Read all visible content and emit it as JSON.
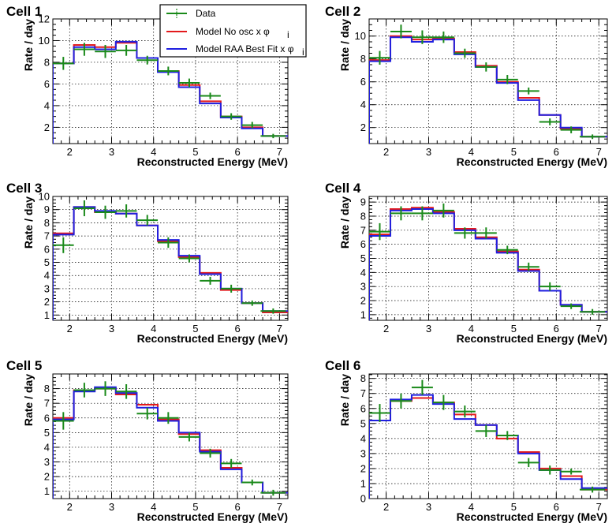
{
  "legend": {
    "data": "Data",
    "no_osc": "Model No osc x φ",
    "no_osc_sub": "i",
    "raa": "Model RAA Best Fit x φ",
    "raa_sub": "i"
  },
  "colors": {
    "data": "#1a8a1a",
    "no_osc": "#e31a1c",
    "raa": "#1f1fe0"
  },
  "chart_data": [
    {
      "type": "line",
      "title": "Cell 1",
      "xlabel": "Reconstructed Energy (MeV)",
      "ylabel": "Rate / day",
      "xlim": [
        1.6,
        7.2
      ],
      "ylim": [
        0.5,
        12
      ],
      "xticks": [
        2,
        3,
        4,
        5,
        6,
        7
      ],
      "yticks": [
        2,
        4,
        6,
        8,
        10,
        12
      ],
      "grid": true,
      "bin_edges": [
        1.6,
        2.1,
        2.6,
        3.1,
        3.6,
        4.1,
        4.6,
        5.1,
        5.6,
        6.1,
        6.6,
        7.2
      ],
      "series": [
        {
          "name": "Data",
          "x": [
            1.85,
            2.35,
            2.85,
            3.35,
            3.85,
            4.35,
            4.85,
            5.35,
            5.85,
            6.35,
            6.85
          ],
          "values": [
            7.9,
            9.2,
            9.0,
            9.1,
            8.2,
            7.2,
            6.1,
            4.9,
            3.0,
            2.2,
            1.2
          ],
          "errors": [
            0.6,
            0.6,
            0.6,
            0.5,
            0.4,
            0.4,
            0.4,
            0.3,
            0.3,
            0.3,
            0.2
          ]
        },
        {
          "name": "Model No osc x φi",
          "values": [
            7.9,
            9.6,
            9.4,
            9.8,
            8.4,
            7.2,
            5.9,
            4.4,
            3.0,
            2.0,
            1.2
          ]
        },
        {
          "name": "Model RAA Best Fit x φi",
          "values": [
            7.9,
            9.4,
            9.2,
            9.9,
            8.4,
            7.1,
            5.7,
            4.2,
            2.9,
            1.9,
            1.2
          ]
        }
      ]
    },
    {
      "type": "line",
      "title": "Cell 2",
      "xlabel": "Reconstructed Energy (MeV)",
      "ylabel": "Rate / day",
      "xlim": [
        1.6,
        7.2
      ],
      "ylim": [
        0.6,
        11.5
      ],
      "xticks": [
        2,
        3,
        4,
        5,
        6,
        7
      ],
      "yticks": [
        2,
        4,
        6,
        8,
        10
      ],
      "grid": true,
      "bin_edges": [
        1.6,
        2.1,
        2.6,
        3.1,
        3.6,
        4.1,
        4.6,
        5.1,
        5.6,
        6.1,
        6.6,
        7.2
      ],
      "series": [
        {
          "name": "Data",
          "x": [
            1.85,
            2.35,
            2.85,
            3.35,
            3.85,
            4.35,
            4.85,
            5.35,
            5.85,
            6.35,
            6.85
          ],
          "values": [
            8.1,
            10.4,
            9.9,
            9.9,
            8.5,
            7.3,
            6.2,
            5.2,
            2.5,
            1.8,
            1.2
          ],
          "errors": [
            0.6,
            0.6,
            0.6,
            0.5,
            0.4,
            0.4,
            0.4,
            0.3,
            0.3,
            0.3,
            0.2
          ]
        },
        {
          "name": "Model No osc x φi",
          "values": [
            7.9,
            10.0,
            9.7,
            9.8,
            8.6,
            7.4,
            6.0,
            4.6,
            3.1,
            1.9,
            1.2
          ]
        },
        {
          "name": "Model RAA Best Fit x φi",
          "values": [
            7.8,
            9.9,
            9.5,
            9.7,
            8.4,
            7.3,
            5.9,
            4.4,
            3.1,
            2.0,
            1.2
          ]
        }
      ]
    },
    {
      "type": "line",
      "title": "Cell 3",
      "xlabel": "Reconstructed Energy (MeV)",
      "ylabel": "Rate / day",
      "xlim": [
        1.6,
        7.2
      ],
      "ylim": [
        0.6,
        10
      ],
      "xticks": [
        2,
        3,
        4,
        5,
        6,
        7
      ],
      "yticks": [
        1,
        2,
        3,
        4,
        5,
        6,
        7,
        8,
        9,
        10
      ],
      "grid": true,
      "bin_edges": [
        1.6,
        2.1,
        2.6,
        3.1,
        3.6,
        4.1,
        4.6,
        5.1,
        5.6,
        6.1,
        6.6,
        7.2
      ],
      "series": [
        {
          "name": "Data",
          "x": [
            1.85,
            2.35,
            2.85,
            3.35,
            3.85,
            4.35,
            4.85,
            5.35,
            5.85,
            6.35,
            6.85
          ],
          "values": [
            6.3,
            9.1,
            8.8,
            8.9,
            8.2,
            6.5,
            5.3,
            3.6,
            3.0,
            1.9,
            1.3
          ],
          "errors": [
            0.6,
            0.6,
            0.5,
            0.5,
            0.4,
            0.4,
            0.3,
            0.3,
            0.3,
            0.2,
            0.2
          ]
        },
        {
          "name": "Model No osc x φi",
          "values": [
            7.2,
            9.2,
            8.8,
            8.7,
            7.8,
            6.6,
            5.4,
            4.2,
            2.9,
            1.9,
            1.2
          ]
        },
        {
          "name": "Model RAA Best Fit x φi",
          "values": [
            7.1,
            9.2,
            8.9,
            8.7,
            7.8,
            6.7,
            5.5,
            4.1,
            3.0,
            1.9,
            1.3
          ]
        }
      ]
    },
    {
      "type": "line",
      "title": "Cell 4",
      "xlabel": "Reconstructed Energy (MeV)",
      "ylabel": "Rate / day",
      "xlim": [
        1.6,
        7.2
      ],
      "ylim": [
        0.6,
        9.4
      ],
      "xticks": [
        2,
        3,
        4,
        5,
        6,
        7
      ],
      "yticks": [
        1,
        2,
        3,
        4,
        5,
        6,
        7,
        8,
        9
      ],
      "grid": true,
      "bin_edges": [
        1.6,
        2.1,
        2.6,
        3.1,
        3.6,
        4.1,
        4.6,
        5.1,
        5.6,
        6.1,
        6.6,
        7.2
      ],
      "series": [
        {
          "name": "Data",
          "x": [
            1.85,
            2.35,
            2.85,
            3.35,
            3.85,
            4.35,
            4.85,
            5.35,
            5.85,
            6.35,
            6.85
          ],
          "values": [
            6.9,
            8.2,
            8.2,
            8.4,
            6.8,
            6.8,
            5.6,
            4.4,
            3.0,
            1.6,
            1.2
          ],
          "errors": [
            0.6,
            0.5,
            0.5,
            0.5,
            0.4,
            0.4,
            0.3,
            0.3,
            0.3,
            0.2,
            0.2
          ]
        },
        {
          "name": "Model No osc x φi",
          "values": [
            6.7,
            8.5,
            8.6,
            8.3,
            7.1,
            6.5,
            5.5,
            4.2,
            2.7,
            1.7,
            1.2
          ]
        },
        {
          "name": "Model RAA Best Fit x φi",
          "values": [
            6.6,
            8.4,
            8.5,
            8.2,
            7.0,
            6.4,
            5.4,
            4.1,
            2.7,
            1.7,
            1.2
          ]
        }
      ]
    },
    {
      "type": "line",
      "title": "Cell 5",
      "xlabel": "Reconstructed Energy (MeV)",
      "ylabel": "Rate / day",
      "xlim": [
        1.6,
        7.2
      ],
      "ylim": [
        0.5,
        9
      ],
      "xticks": [
        2,
        3,
        4,
        5,
        6,
        7
      ],
      "yticks": [
        1,
        2,
        3,
        4,
        5,
        6,
        7,
        8
      ],
      "grid": true,
      "bin_edges": [
        1.6,
        2.1,
        2.6,
        3.1,
        3.6,
        4.1,
        4.6,
        5.1,
        5.6,
        6.1,
        6.6,
        7.2
      ],
      "series": [
        {
          "name": "Data",
          "x": [
            1.85,
            2.35,
            2.85,
            3.35,
            3.85,
            4.35,
            4.85,
            5.35,
            5.85,
            6.35,
            6.85
          ],
          "values": [
            5.8,
            7.9,
            8.0,
            7.8,
            6.3,
            6.0,
            4.7,
            3.6,
            2.9,
            1.6,
            0.9
          ],
          "errors": [
            0.6,
            0.5,
            0.5,
            0.5,
            0.4,
            0.4,
            0.3,
            0.3,
            0.3,
            0.2,
            0.2
          ]
        },
        {
          "name": "Model No osc x φi",
          "values": [
            6.0,
            7.9,
            8.0,
            7.6,
            6.9,
            5.9,
            4.9,
            3.8,
            2.6,
            1.6,
            0.9
          ]
        },
        {
          "name": "Model RAA Best Fit x φi",
          "values": [
            5.9,
            7.8,
            8.1,
            7.7,
            6.7,
            5.8,
            5.0,
            3.7,
            2.5,
            1.6,
            0.9
          ]
        }
      ]
    },
    {
      "type": "line",
      "title": "Cell 6",
      "xlabel": "Reconstructed Energy (MeV)",
      "ylabel": "Rate / day",
      "xlim": [
        1.6,
        7.2
      ],
      "ylim": [
        0,
        8.3
      ],
      "xticks": [
        2,
        3,
        4,
        5,
        6,
        7
      ],
      "yticks": [
        0,
        1,
        2,
        3,
        4,
        5,
        6,
        7,
        8
      ],
      "grid": true,
      "bin_edges": [
        1.6,
        2.1,
        2.6,
        3.1,
        3.6,
        4.1,
        4.6,
        5.1,
        5.6,
        6.1,
        6.6,
        7.2
      ],
      "series": [
        {
          "name": "Data",
          "x": [
            1.85,
            2.35,
            2.85,
            3.35,
            3.85,
            4.35,
            4.85,
            5.35,
            5.85,
            6.35,
            6.85
          ],
          "values": [
            5.7,
            6.5,
            7.4,
            6.4,
            5.8,
            4.5,
            4.2,
            2.4,
            1.9,
            1.8,
            0.6
          ],
          "errors": [
            0.6,
            0.5,
            0.5,
            0.5,
            0.4,
            0.4,
            0.3,
            0.3,
            0.3,
            0.2,
            0.2
          ]
        },
        {
          "name": "Model No osc x φi",
          "values": [
            5.2,
            6.5,
            6.7,
            6.4,
            5.6,
            4.9,
            4.0,
            3.1,
            2.0,
            1.5,
            0.6
          ]
        },
        {
          "name": "Model RAA Best Fit x φi",
          "values": [
            5.2,
            6.6,
            6.9,
            6.3,
            5.3,
            4.9,
            4.2,
            3.0,
            1.9,
            1.3,
            0.7
          ]
        }
      ]
    }
  ]
}
